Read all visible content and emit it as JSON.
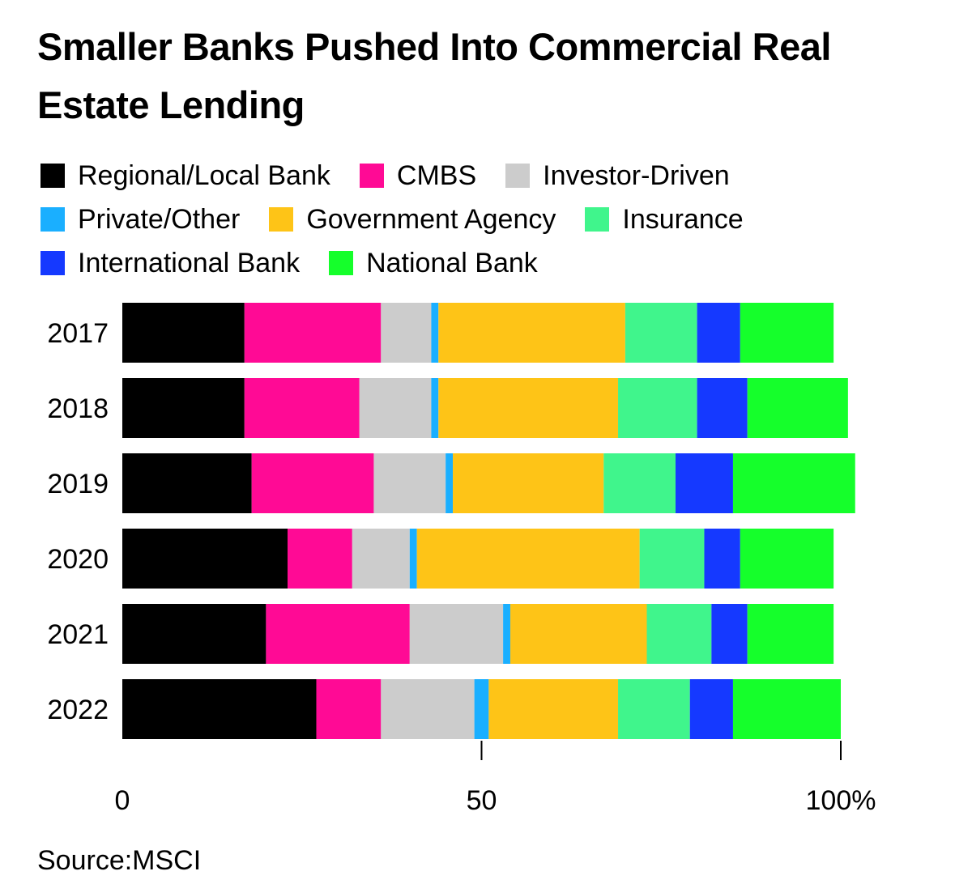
{
  "title": "Smaller Banks Pushed Into Commercial Real Estate Lending",
  "source": "Source:MSCI",
  "chart_data": {
    "type": "bar",
    "orientation": "horizontal",
    "stacked": true,
    "title": "Smaller Banks Pushed Into Commercial Real Estate Lending",
    "xlabel": "",
    "ylabel": "",
    "xlim": [
      0,
      100
    ],
    "x_ticks": [
      "0",
      "50",
      "100%"
    ],
    "grid": false,
    "legend_position": "top",
    "categories": [
      "2017",
      "2018",
      "2019",
      "2020",
      "2021",
      "2022"
    ],
    "series": [
      {
        "name": "Regional/Local Bank",
        "color": "#000000",
        "values": [
          17,
          17,
          18,
          23,
          20,
          27
        ]
      },
      {
        "name": "CMBS",
        "color": "#FF0A95",
        "values": [
          19,
          16,
          17,
          9,
          20,
          9
        ]
      },
      {
        "name": "Investor-Driven",
        "color": "#CCCCCC",
        "values": [
          7,
          10,
          10,
          8,
          13,
          13
        ]
      },
      {
        "name": "Private/Other",
        "color": "#1AAFFF",
        "values": [
          1,
          1,
          1,
          1,
          1,
          2
        ]
      },
      {
        "name": "Government Agency",
        "color": "#FEC417",
        "values": [
          26,
          25,
          21,
          31,
          19,
          18
        ]
      },
      {
        "name": "Insurance",
        "color": "#40F58C",
        "values": [
          10,
          11,
          10,
          9,
          9,
          10
        ]
      },
      {
        "name": "International Bank",
        "color": "#1539FF",
        "values": [
          6,
          7,
          8,
          5,
          5,
          6
        ]
      },
      {
        "name": "National Bank",
        "color": "#15FF2B",
        "values": [
          13,
          14,
          17,
          13,
          12,
          15
        ]
      }
    ]
  }
}
